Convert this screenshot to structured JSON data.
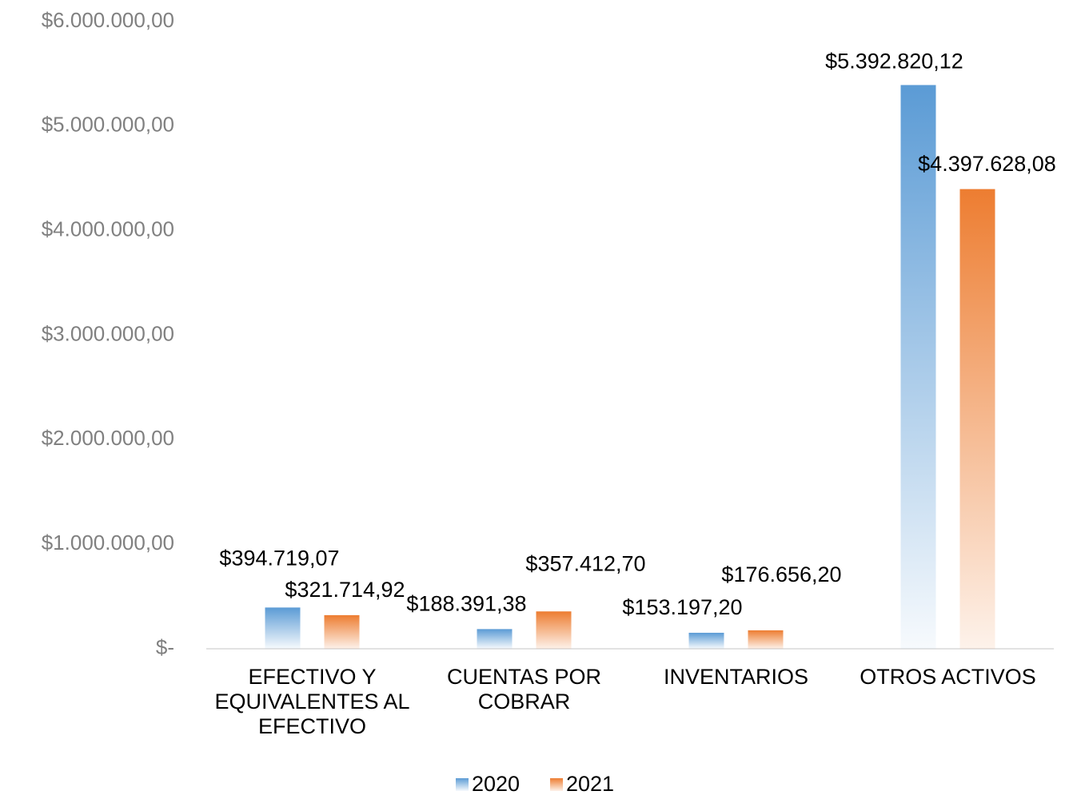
{
  "chart_data": {
    "type": "bar",
    "categories": [
      "EFECTIVO Y EQUIVALENTES AL EFECTIVO",
      "CUENTAS POR COBRAR",
      "INVENTARIOS",
      "OTROS ACTIVOS"
    ],
    "series": [
      {
        "name": "2020",
        "color": "#5b9bd5",
        "values": [
          394719.07,
          188391.38,
          153197.2,
          5392820.12
        ],
        "value_labels": [
          "$394.719,07",
          "$188.391,38",
          "$153.197,20",
          "$5.392.820,12"
        ]
      },
      {
        "name": "2021",
        "color": "#ed7d31",
        "values": [
          321714.92,
          357412.7,
          176656.2,
          4397628.08
        ],
        "value_labels": [
          "$321.714,92",
          "$357.412,70",
          "$176.656,20",
          "$4.397.628,08"
        ]
      }
    ],
    "ylim": [
      0,
      6000000
    ],
    "yticks": [
      {
        "value": 0,
        "label": "$-"
      },
      {
        "value": 1000000,
        "label": "$1.000.000,00"
      },
      {
        "value": 2000000,
        "label": "$2.000.000,00"
      },
      {
        "value": 3000000,
        "label": "$3.000.000,00"
      },
      {
        "value": 4000000,
        "label": "$4.000.000,00"
      },
      {
        "value": 5000000,
        "label": "$5.000.000,00"
      },
      {
        "value": 6000000,
        "label": "$6.000.000,00"
      }
    ],
    "legend": "bottom"
  }
}
